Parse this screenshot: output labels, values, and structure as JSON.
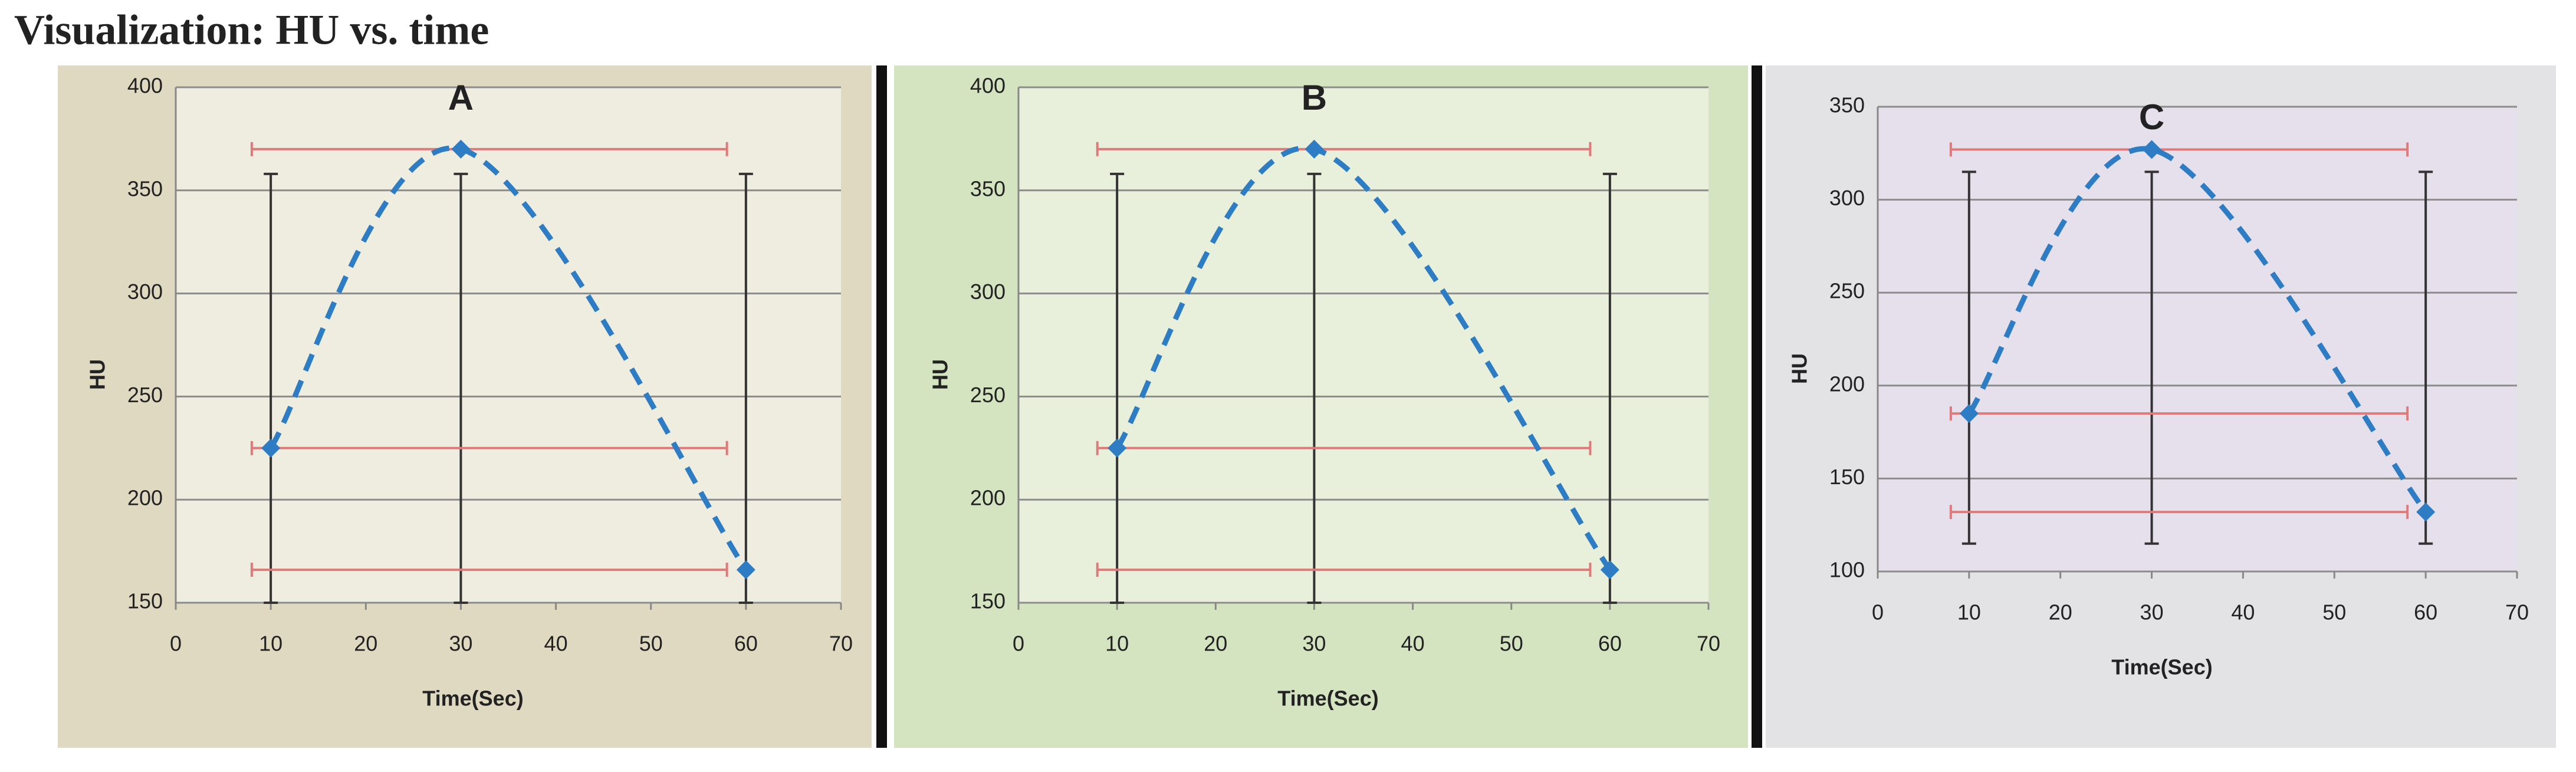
{
  "page_title": "Visualization: HU vs. time",
  "chart_data": [
    {
      "type": "line",
      "title": "A",
      "xlabel": "Time(Sec)",
      "ylabel": "HU",
      "xlim": [
        0,
        70
      ],
      "xticks": [
        0,
        10,
        20,
        30,
        40,
        50,
        60,
        70
      ],
      "ylim": [
        150,
        400
      ],
      "yticks": [
        150,
        200,
        250,
        300,
        350,
        400
      ],
      "grid": true,
      "series": [
        {
          "color": "#2e7dc4",
          "x": [
            10,
            30,
            60
          ],
          "values": [
            225,
            370,
            166
          ],
          "xerr": [
            [
              8,
              58
            ],
            [
              8,
              58
            ],
            [
              8,
              58
            ]
          ],
          "xerr_color": "#e07a7a",
          "yerr": [
            [
              150,
              358
            ],
            [
              150,
              358
            ],
            [
              150,
              358
            ]
          ],
          "yerr_color": "#333333"
        }
      ]
    },
    {
      "type": "line",
      "title": "B",
      "xlabel": "Time(Sec)",
      "ylabel": "HU",
      "xlim": [
        0,
        70
      ],
      "xticks": [
        0,
        10,
        20,
        30,
        40,
        50,
        60,
        70
      ],
      "ylim": [
        150,
        400
      ],
      "yticks": [
        150,
        200,
        250,
        300,
        350,
        400
      ],
      "grid": true,
      "series": [
        {
          "color": "#2e7dc4",
          "x": [
            10,
            30,
            60
          ],
          "values": [
            225,
            370,
            166
          ],
          "xerr": [
            [
              8,
              58
            ],
            [
              8,
              58
            ],
            [
              8,
              58
            ]
          ],
          "xerr_color": "#e07a7a",
          "yerr": [
            [
              150,
              358
            ],
            [
              150,
              358
            ],
            [
              150,
              358
            ]
          ],
          "yerr_color": "#333333"
        }
      ]
    },
    {
      "type": "line",
      "title": "C",
      "xlabel": "Time(Sec)",
      "ylabel": "HU",
      "xlim": [
        0,
        70
      ],
      "xticks": [
        0,
        10,
        20,
        30,
        40,
        50,
        60,
        70
      ],
      "ylim": [
        100,
        350
      ],
      "yticks": [
        100,
        150,
        200,
        250,
        300,
        350
      ],
      "grid": true,
      "series": [
        {
          "color": "#2e7dc4",
          "x": [
            10,
            30,
            60
          ],
          "values": [
            185,
            327,
            132
          ],
          "xerr": [
            [
              8,
              58
            ],
            [
              8,
              58
            ],
            [
              8,
              58
            ]
          ],
          "xerr_color": "#e07a7a",
          "yerr": [
            [
              115,
              315
            ],
            [
              115,
              315
            ],
            [
              115,
              315
            ]
          ],
          "yerr_color": "#333333"
        }
      ]
    }
  ]
}
